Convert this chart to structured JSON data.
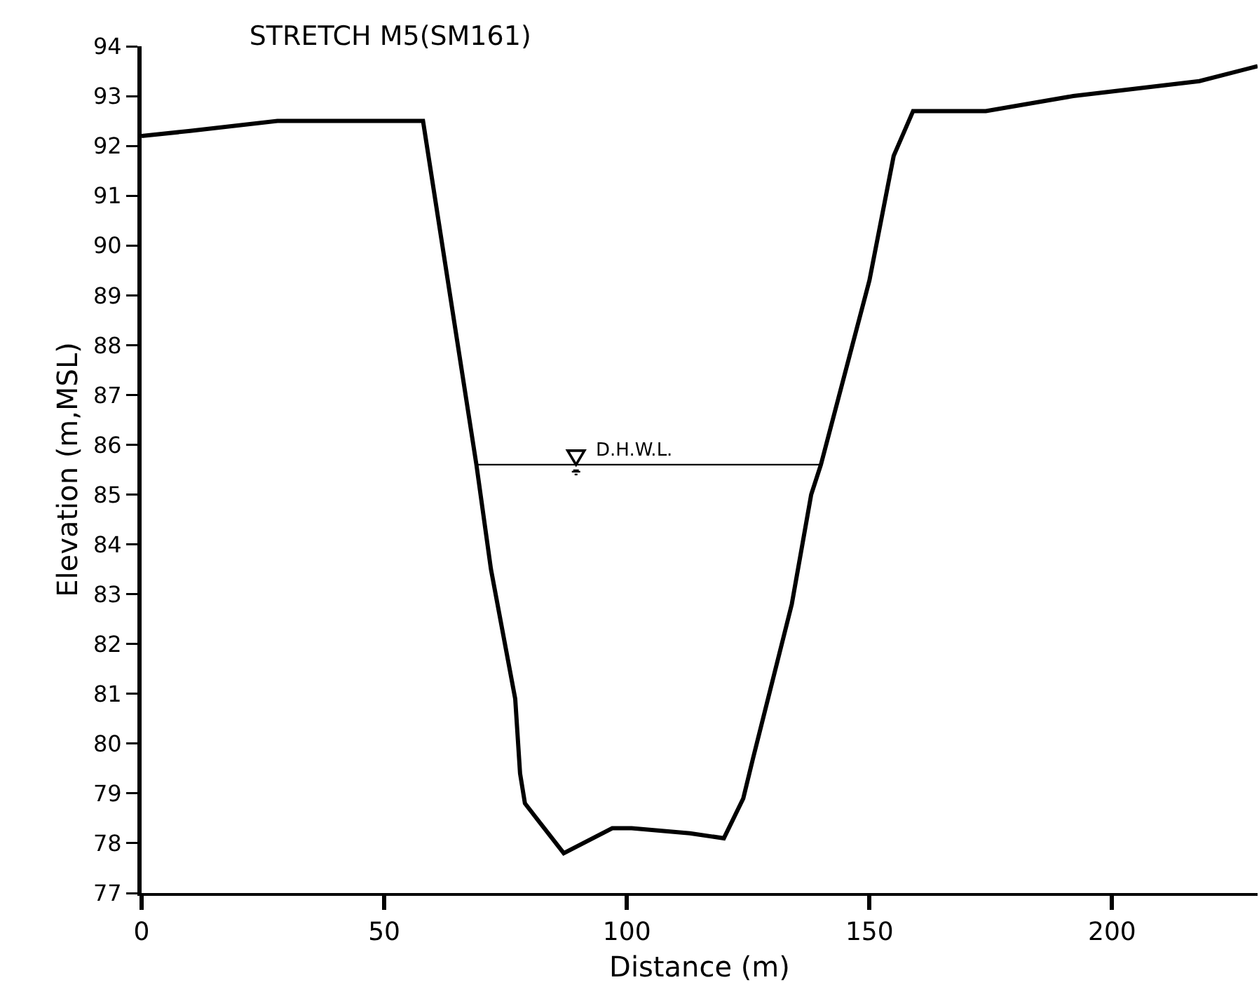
{
  "chart_data": {
    "type": "line",
    "title": "STRETCH M5(SM161)",
    "xlabel": "Distance (m)",
    "ylabel": "Elevation (m,MSL)",
    "xlim": [
      0,
      230
    ],
    "xticks": [
      0,
      50,
      100,
      150,
      200
    ],
    "ylim": [
      77,
      94
    ],
    "yticks": [
      77,
      78,
      79,
      80,
      81,
      82,
      83,
      84,
      85,
      86,
      87,
      88,
      89,
      90,
      91,
      92,
      93,
      94
    ],
    "grid": false,
    "marker": "none",
    "line_style": "solid",
    "series": [
      {
        "color": "#000000",
        "x": [
          0,
          10,
          28,
          58,
          69,
          72,
          77,
          78,
          79,
          87,
          97,
          101,
          113,
          120,
          124,
          126,
          134,
          138,
          140,
          150,
          155,
          159,
          174,
          192,
          218,
          230
        ],
        "values": [
          92.2,
          92.3,
          92.5,
          92.5,
          85.6,
          83.5,
          80.9,
          79.4,
          78.8,
          77.8,
          78.3,
          78.3,
          78.2,
          78.1,
          78.9,
          79.7,
          82.8,
          85.0,
          85.6,
          89.3,
          91.8,
          92.7,
          92.7,
          93.0,
          93.3,
          93.6
        ]
      },
      {
        "color": "#000000",
        "x": [
          69,
          140
        ],
        "values": [
          85.6,
          85.6
        ]
      }
    ],
    "annotations": [
      {
        "text": "D.H.W.L.",
        "x": 93,
        "y": 85.6
      }
    ]
  }
}
